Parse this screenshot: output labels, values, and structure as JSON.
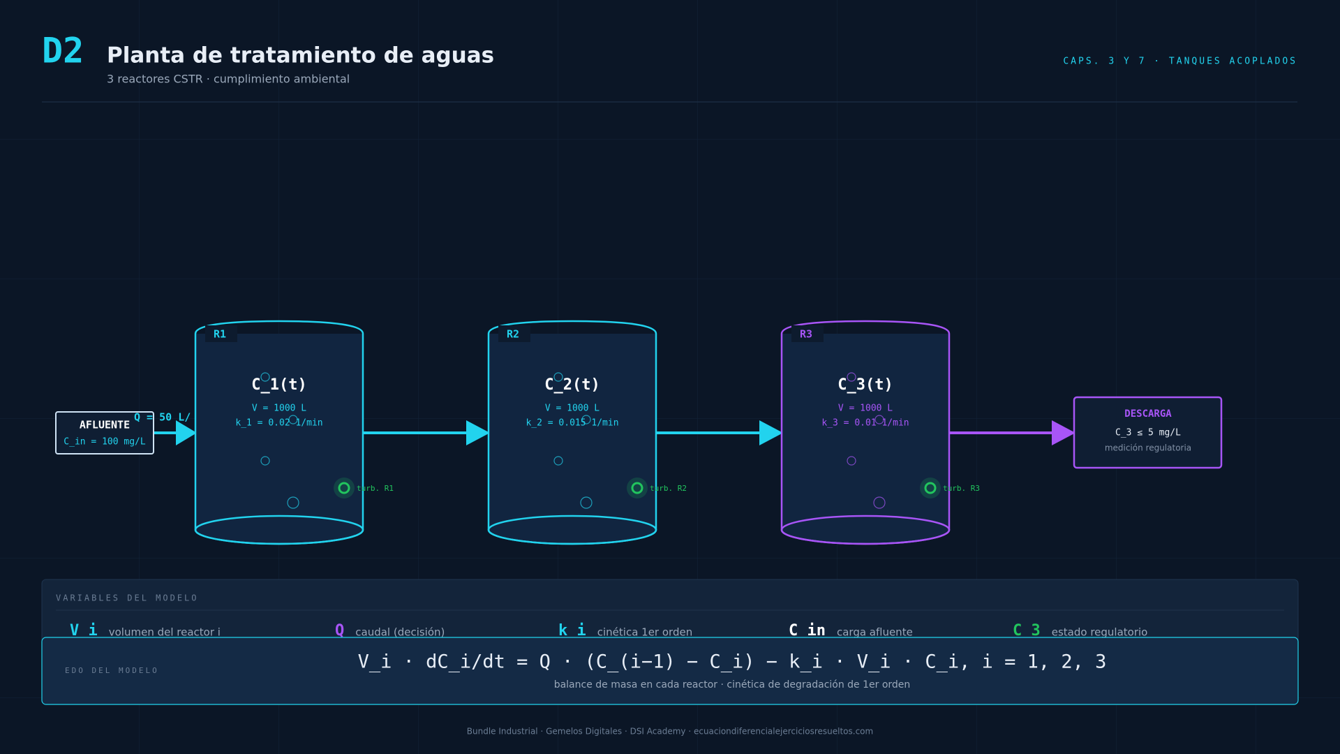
{
  "header": {
    "badge": "D2",
    "title": "Planta de tratamiento de aguas",
    "subtitle": "3 reactores CSTR · cumplimiento ambiental",
    "tag": "CAPS. 3 Y 7 · TANQUES ACOPLADOS"
  },
  "inlet": {
    "label": "AFLUENTE",
    "value": "C_in = 100 mg/L",
    "flow": "Q = 50 L/"
  },
  "reactors": [
    {
      "tag": "R1",
      "state": "C_1(t)",
      "volume": "V = 1000 L",
      "rate": "k_1 = 0.02 1/min",
      "sensor": "turb. R1"
    },
    {
      "tag": "R2",
      "state": "C_2(t)",
      "volume": "V = 1000 L",
      "rate": "k_2 = 0.015 1/min",
      "sensor": "turb. R2"
    },
    {
      "tag": "R3",
      "state": "C_3(t)",
      "volume": "V = 1000 L",
      "rate": "k_3 = 0.01 1/min",
      "sensor": "turb. R3"
    }
  ],
  "outlet": {
    "label": "DESCARGA",
    "value": "C_3 ≤ 5 mg/L",
    "note": "medición regulatoria"
  },
  "variables": {
    "title": "VARIABLES DEL MODELO",
    "items": [
      {
        "symbol": "V i",
        "description": "volumen del reactor i"
      },
      {
        "symbol": "Q",
        "description": "caudal (decisión)"
      },
      {
        "symbol": "k i",
        "description": "cinética 1er orden"
      },
      {
        "symbol": "C in",
        "description": "carga afluente"
      },
      {
        "symbol": "C 3",
        "description": "estado regulatorio"
      }
    ]
  },
  "equation": {
    "label": "EDO DEL MODELO",
    "formula": "V_i · dC_i/dt = Q · (C_(i−1) − C_i) − k_i · V_i · C_i, i = 1, 2, 3",
    "caption": "balance de masa en cada reactor · cinética de degradación de 1er orden"
  },
  "footer": "Bundle Industrial · Gemelos Digitales · DSI Academy · ecuaciondiferencialejerciciosresueltos.com"
}
